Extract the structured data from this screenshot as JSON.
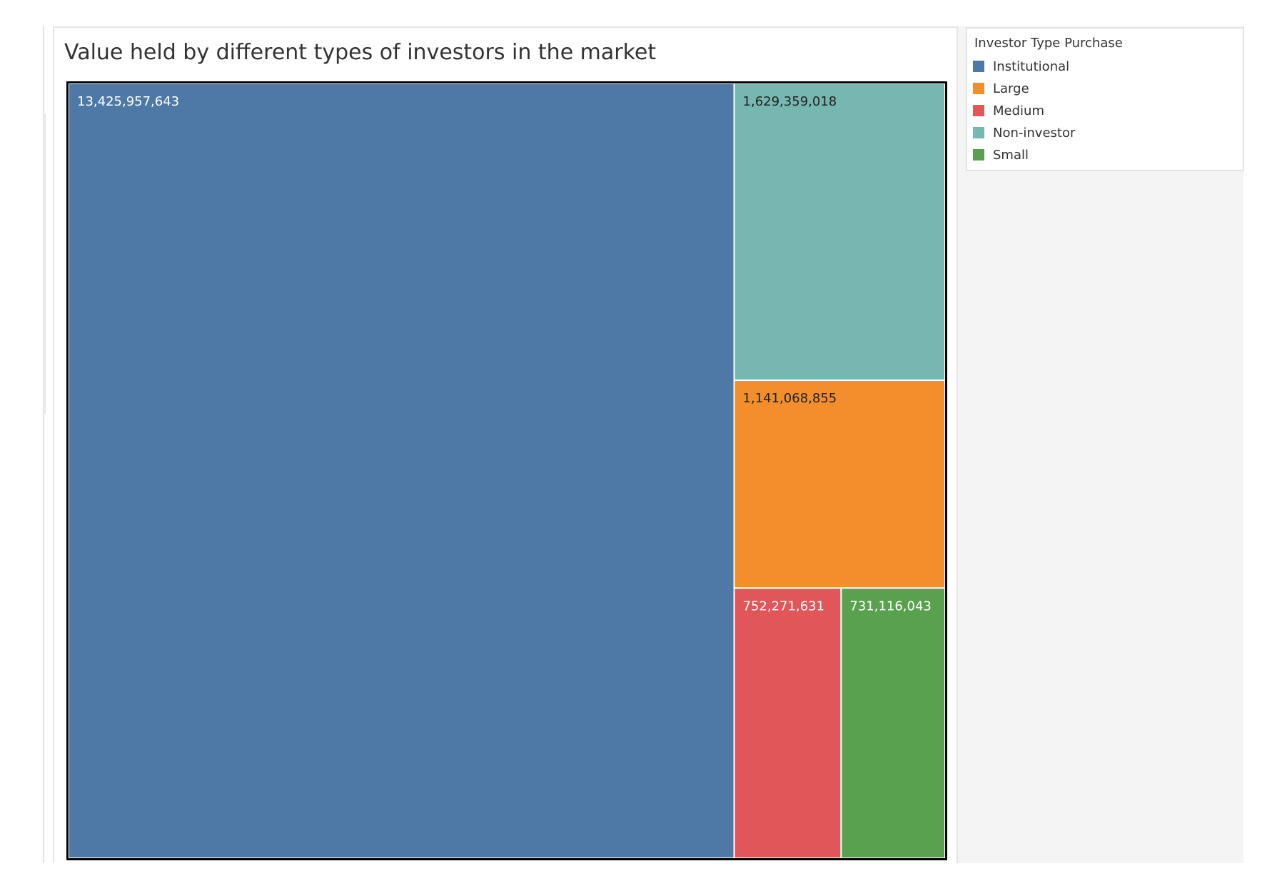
{
  "chart_data": {
    "type": "treemap",
    "title": "Value held by different types of investors in the market",
    "legend": {
      "title": "Investor Type Purchase",
      "placement": "right"
    },
    "categories": [
      "Institutional",
      "Large",
      "Medium",
      "Non-investor",
      "Small"
    ],
    "colors": {
      "Institutional": "#4e79a7",
      "Large": "#f28e2b",
      "Medium": "#e15759",
      "Non-investor": "#76b7b2",
      "Small": "#59a14f"
    },
    "label_colors": {
      "Institutional": "#ffffff",
      "Large": "#222222",
      "Medium": "#ffffff",
      "Non-investor": "#222222",
      "Small": "#ffffff"
    },
    "values": {
      "Institutional": 13425957643,
      "Large": 1141068855,
      "Medium": 752271631,
      "Non-investor": 1629359018,
      "Small": 731116043
    },
    "labels": {
      "Institutional": "13,425,957,643",
      "Large": "1,141,068,855",
      "Medium": "752,271,631",
      "Non-investor": "1,629,359,018",
      "Small": "731,116,043"
    },
    "layout_order": [
      "Institutional",
      "Non-investor",
      "Large",
      "Medium",
      "Small"
    ]
  }
}
